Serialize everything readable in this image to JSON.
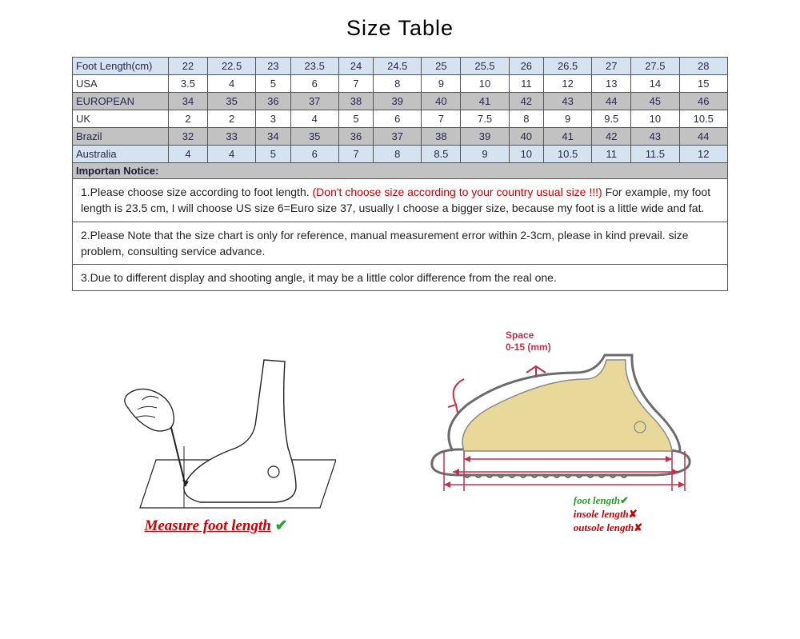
{
  "title": "Size Table",
  "table": {
    "rows": [
      {
        "label": "Foot Length(cm)",
        "cells": [
          "22",
          "22.5",
          "23",
          "23.5",
          "24",
          "24.5",
          "25",
          "25.5",
          "26",
          "26.5",
          "27",
          "27.5",
          "28"
        ],
        "style": "tint"
      },
      {
        "label": "USA",
        "cells": [
          "3.5",
          "4",
          "5",
          "6",
          "7",
          "8",
          "9",
          "10",
          "11",
          "12",
          "13",
          "14",
          "15"
        ],
        "style": "white"
      },
      {
        "label": "EUROPEAN",
        "cells": [
          "34",
          "35",
          "36",
          "37",
          "38",
          "39",
          "40",
          "41",
          "42",
          "43",
          "44",
          "45",
          "46"
        ],
        "style": "grey"
      },
      {
        "label": "UK",
        "cells": [
          "2",
          "2",
          "3",
          "4",
          "5",
          "6",
          "7",
          "7.5",
          "8",
          "9",
          "9.5",
          "10",
          "10.5"
        ],
        "style": "white"
      },
      {
        "label": "Brazil",
        "cells": [
          "32",
          "33",
          "34",
          "35",
          "36",
          "37",
          "38",
          "39",
          "40",
          "41",
          "42",
          "43",
          "44"
        ],
        "style": "grey"
      },
      {
        "label": "Australia",
        "cells": [
          "4",
          "4",
          "5",
          "6",
          "7",
          "8",
          "8.5",
          "9",
          "10",
          "10.5",
          "11",
          "11.5",
          "12"
        ],
        "style": "tint"
      }
    ],
    "tint_bg": "#d5e2ef",
    "grey_bg": "#c2c2c2",
    "border_color": "#555555"
  },
  "notice_header": "Importan Notice:",
  "notices": {
    "n1_pre": "1.Please choose size according to foot length. ",
    "n1_red": "(Don't choose size according to your country usual size !!!)",
    "n1_post": "  For example, my foot length is 23.5 cm, I will choose US size 6=Euro size  37, usually I choose a bigger size, because my foot is a little wide and fat.",
    "n2": "2.Please Note that the size chart is only for reference, manual measurement error within 2-3cm, please in kind prevail. size problem, consulting service advance.",
    "n3": "3.Due to different display and shooting angle, it may be a little color difference from the real one."
  },
  "diagram_left": {
    "caption": "Measure foot length",
    "underline_color": "#cc0000",
    "check_color": "#2aa02a"
  },
  "diagram_right": {
    "space_label_line1": "Space",
    "space_label_line2": "0-15 (mm)",
    "foot_fill": "#e8d99a",
    "shoe_stroke": "#6b6b6b",
    "arrow_color": "#c62f48",
    "legend_foot": "foot length",
    "legend_insole": "insole length",
    "legend_outsole": "outsole length"
  }
}
